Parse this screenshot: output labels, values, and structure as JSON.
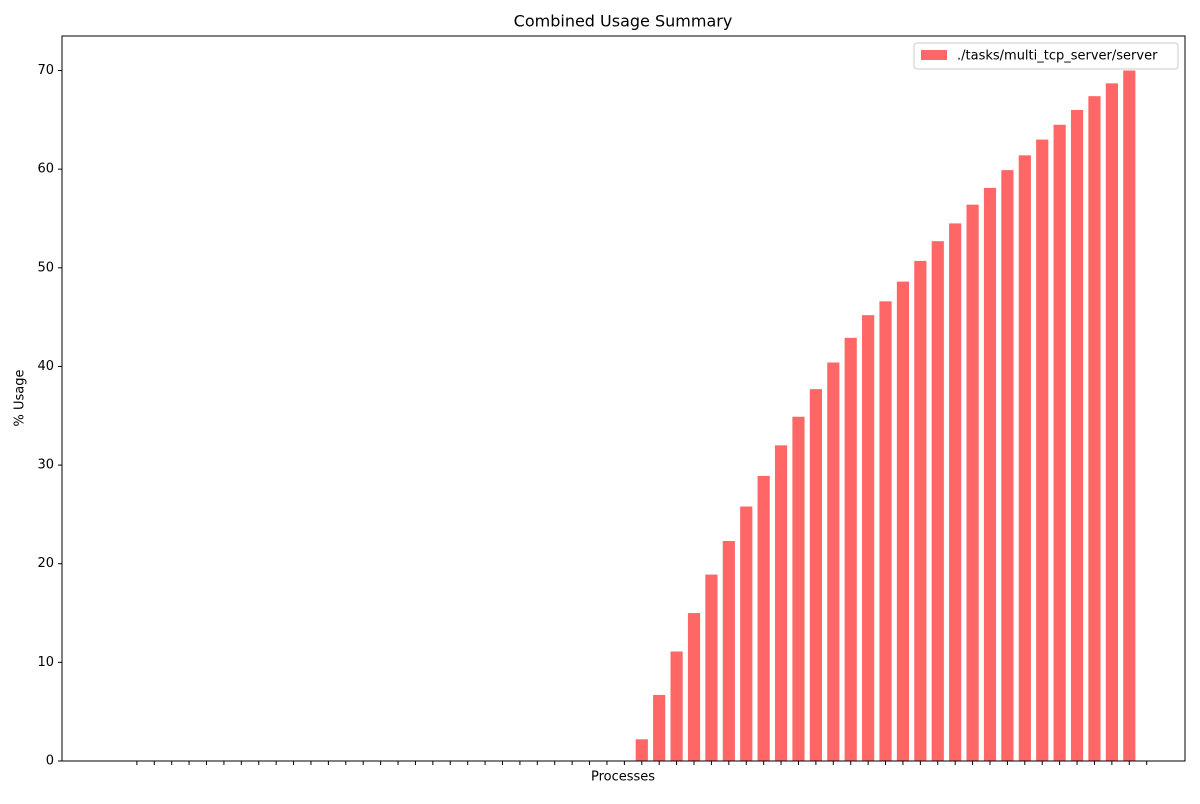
{
  "chart_data": {
    "type": "bar",
    "title": "Combined Usage Summary",
    "x_label": "Processes",
    "y_label": "% Usage",
    "categories": [
      null,
      null,
      null,
      null,
      null,
      null,
      null,
      null,
      null,
      null,
      null,
      null,
      null,
      null,
      null,
      null,
      null,
      null,
      null,
      null,
      null,
      null,
      null,
      null,
      null,
      null,
      null,
      null,
      null,
      null,
      null,
      null,
      null,
      null,
      null,
      null,
      null,
      null,
      null,
      null,
      null,
      null,
      null,
      null,
      null,
      null,
      null,
      null,
      null,
      null,
      null,
      null,
      null,
      null,
      null,
      null,
      null,
      null,
      null
    ],
    "series": [
      {
        "name": "./tasks/multi_tcp_server/server",
        "color": "#ff6666",
        "values": [
          0,
          0,
          0,
          0,
          0,
          0,
          0,
          0,
          0,
          0,
          0,
          0,
          0,
          0,
          0,
          0,
          0,
          0,
          0,
          0,
          0,
          0,
          0,
          0,
          0,
          0,
          0,
          0,
          0,
          2.2,
          6.7,
          11.1,
          15.0,
          18.9,
          22.3,
          25.8,
          28.9,
          32.0,
          34.9,
          37.7,
          40.4,
          42.9,
          45.2,
          46.6,
          48.6,
          50.7,
          52.7,
          54.5,
          56.4,
          58.1,
          59.9,
          61.4,
          63.0,
          64.5,
          66.0,
          67.4,
          68.7,
          70.0,
          0
        ]
      }
    ],
    "ylim": [
      0,
      73.5
    ],
    "yticks": [
      0,
      10,
      20,
      30,
      40,
      50,
      60,
      70
    ],
    "xlim": [
      -4.3,
      60.2
    ],
    "legend": "upper right"
  }
}
